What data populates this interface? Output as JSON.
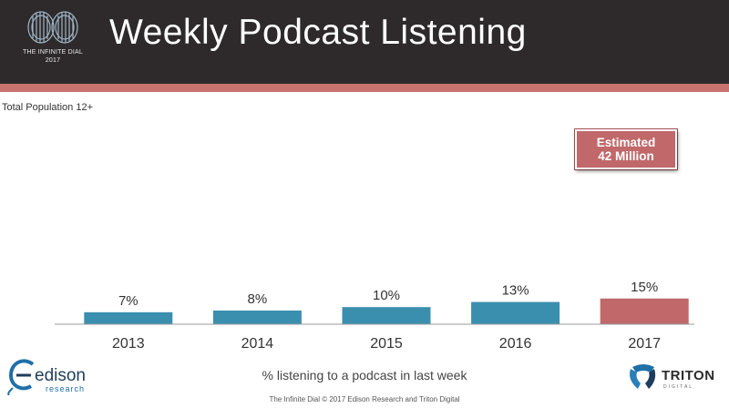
{
  "header": {
    "title": "Weekly Podcast Listening",
    "logo_line1": "THE INFINITE DIAL",
    "logo_line2": "2017",
    "bg_color": "#2e2a2b",
    "stripe_color": "#c9736f"
  },
  "subtitle": "Total Population 12+",
  "callout": {
    "line1": "Estimated",
    "line2": "42 Million"
  },
  "chart_data": {
    "type": "bar",
    "categories": [
      "2013",
      "2014",
      "2015",
      "2016",
      "2017"
    ],
    "values": [
      7,
      8,
      10,
      13,
      15
    ],
    "value_labels": [
      "7%",
      "8%",
      "10%",
      "13%",
      "15%"
    ],
    "bar_colors": [
      "#3b8fae",
      "#3b8fae",
      "#3b8fae",
      "#3b8fae",
      "#c0686a"
    ],
    "xlabel": "% listening to a podcast in last week",
    "ylabel": "",
    "ylim": [
      0,
      50
    ],
    "grid": false,
    "legend": "none"
  },
  "footer": "The Infinite Dial  © 2017 Edison Research and Triton Digital",
  "logos": {
    "edison_name": "edison",
    "edison_sub": "research",
    "triton_name": "TRITON",
    "triton_sub": "DIGITAL"
  }
}
